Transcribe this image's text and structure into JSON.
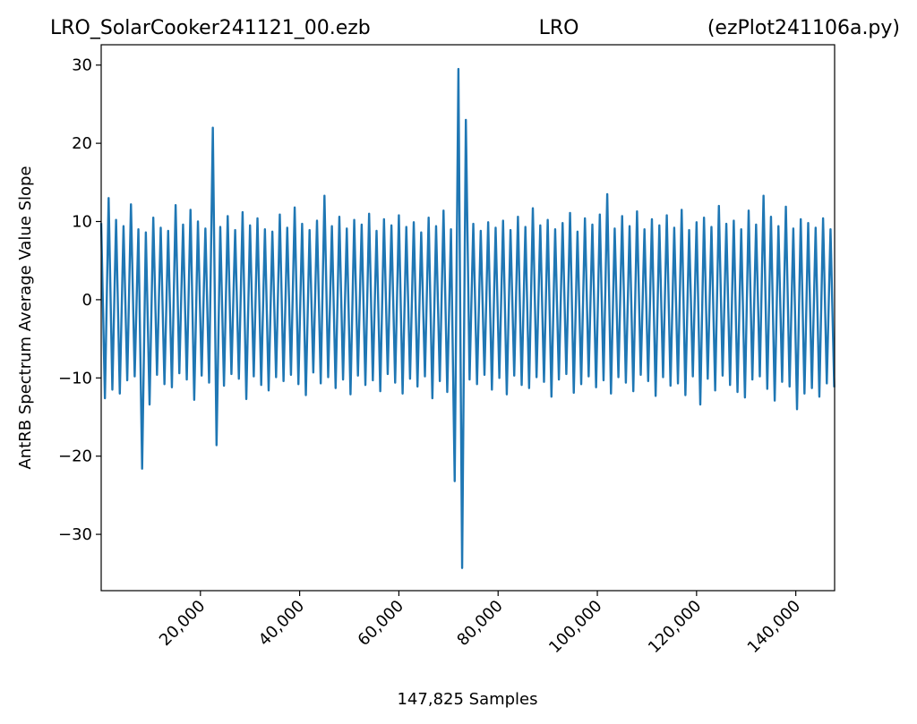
{
  "chart_data": {
    "type": "line",
    "title_left": "LRO_SolarCooker241121_00.ezb",
    "title": "LRO",
    "title_right": "(ezPlot241106a.py)",
    "xlabel": "147,825 Samples",
    "ylabel": "AntRB Spectrum Average Value Slope",
    "xlim": [
      0,
      147825
    ],
    "ylim": [
      -37.2,
      32.6
    ],
    "xticks": [
      {
        "value": 20000,
        "label": "20,000"
      },
      {
        "value": 40000,
        "label": "40,000"
      },
      {
        "value": 60000,
        "label": "60,000"
      },
      {
        "value": 80000,
        "label": "80,000"
      },
      {
        "value": 100000,
        "label": "100,000"
      },
      {
        "value": 120000,
        "label": "120,000"
      },
      {
        "value": 140000,
        "label": "140,000"
      }
    ],
    "yticks": [
      {
        "value": -30,
        "label": "−30"
      },
      {
        "value": -20,
        "label": "−20"
      },
      {
        "value": -10,
        "label": "−10"
      },
      0,
      10,
      20,
      30
    ],
    "grid": false,
    "x": [
      0,
      750,
      1500,
      2250,
      3000,
      3750,
      4500,
      5250,
      6000,
      6750,
      7500,
      8250,
      9000,
      9750,
      10500,
      11250,
      12000,
      12750,
      13500,
      14250,
      15000,
      15750,
      16500,
      17250,
      18000,
      18750,
      19500,
      20250,
      21000,
      21750,
      22500,
      23250,
      24000,
      24750,
      25500,
      26250,
      27000,
      27750,
      28500,
      29250,
      30000,
      30750,
      31500,
      32250,
      33000,
      33750,
      34500,
      35250,
      36000,
      36750,
      37500,
      38250,
      39000,
      39750,
      40500,
      41250,
      42000,
      42750,
      43500,
      44250,
      45000,
      45750,
      46500,
      47250,
      48000,
      48750,
      49500,
      50250,
      51000,
      51750,
      52500,
      53250,
      54000,
      54750,
      55500,
      56250,
      57000,
      57750,
      58500,
      59250,
      60000,
      60750,
      61500,
      62250,
      63000,
      63750,
      64500,
      65250,
      66000,
      66750,
      67500,
      68250,
      69000,
      69750,
      70500,
      71250,
      72000,
      72750,
      73500,
      74250,
      75000,
      75750,
      76500,
      77250,
      78000,
      78750,
      79500,
      80250,
      81000,
      81750,
      82500,
      83250,
      84000,
      84750,
      85500,
      86250,
      87000,
      87750,
      88500,
      89250,
      90000,
      90750,
      91500,
      92250,
      93000,
      93750,
      94500,
      95250,
      96000,
      96750,
      97500,
      98250,
      99000,
      99750,
      100500,
      101250,
      102000,
      102750,
      103500,
      104250,
      105000,
      105750,
      106500,
      107250,
      108000,
      108750,
      109500,
      110250,
      111000,
      111750,
      112500,
      113250,
      114000,
      114750,
      115500,
      116250,
      117000,
      117750,
      118500,
      119250,
      120000,
      120750,
      121500,
      122250,
      123000,
      123750,
      124500,
      125250,
      126000,
      126750,
      127500,
      128250,
      129000,
      129750,
      130500,
      131250,
      132000,
      132750,
      133500,
      134250,
      135000,
      135750,
      136500,
      137250,
      138000,
      138750,
      139500,
      140250,
      141000,
      141750,
      142500,
      143250,
      144000,
      144750,
      145500,
      146250,
      147000,
      147750
    ],
    "series": [
      {
        "color": "#1f77b4",
        "values": [
          9.8,
          -12.6,
          13,
          -11.5,
          10.2,
          -12,
          9.4,
          -10.3,
          12.2,
          -9.8,
          9,
          -21.6,
          8.6,
          -13.4,
          10.5,
          -9.6,
          9.2,
          -10.8,
          8.8,
          -11.2,
          12.1,
          -9.4,
          9.6,
          -10.2,
          11.5,
          -12.8,
          10,
          -9.7,
          9.1,
          -10.6,
          22,
          -18.6,
          9.3,
          -11,
          10.7,
          -9.5,
          8.9,
          -10.1,
          11.2,
          -12.7,
          9.5,
          -9.8,
          10.4,
          -10.9,
          9,
          -11.6,
          8.7,
          -9.9,
          10.9,
          -10.4,
          9.2,
          -9.6,
          11.8,
          -10.8,
          9.7,
          -12.2,
          8.9,
          -9.3,
          10.1,
          -10.7,
          13.3,
          -9.9,
          9.4,
          -11.3,
          10.6,
          -10.2,
          9.1,
          -12.1,
          10.2,
          -9.7,
          9.6,
          -10.9,
          11,
          -10.3,
          8.8,
          -11.7,
          10.3,
          -9.5,
          9.5,
          -10.6,
          10.8,
          -12,
          9.3,
          -10.1,
          9.9,
          -11.1,
          8.6,
          -9.8,
          10.5,
          -12.6,
          9.4,
          -10.4,
          11.4,
          -11.8,
          9,
          -23.2,
          29.5,
          -34.3,
          23,
          -10.2,
          9.7,
          -10.8,
          8.8,
          -9.6,
          9.9,
          -11.5,
          9.2,
          -10,
          10.1,
          -12.1,
          8.9,
          -9.7,
          10.6,
          -10.9,
          9.3,
          -11.3,
          11.7,
          -9.9,
          9.5,
          -10.5,
          10.2,
          -12.4,
          9,
          -10.2,
          9.8,
          -9.5,
          11.1,
          -11.9,
          8.7,
          -10.8,
          10.4,
          -9.8,
          9.6,
          -11.2,
          10.9,
          -10.3,
          13.5,
          -12,
          9.1,
          -9.9,
          10.7,
          -10.6,
          9.4,
          -11.7,
          11.3,
          -9.6,
          9,
          -10.4,
          10.3,
          -12.3,
          9.5,
          -9.9,
          10.8,
          -11,
          9.2,
          -10.7,
          11.5,
          -12.2,
          8.9,
          -9.8,
          9.9,
          -13.4,
          10.5,
          -10.1,
          9.3,
          -11.6,
          12,
          -9.7,
          9.7,
          -10.9,
          10.1,
          -11.8,
          9,
          -12.5,
          11.4,
          -10.2,
          9.6,
          -9.8,
          13.3,
          -11.4,
          10.6,
          -12.9,
          9.4,
          -10.5,
          11.9,
          -11.1,
          9.1,
          -14,
          10.3,
          -12,
          9.8,
          -11.3,
          9.2,
          -12.4,
          10.4,
          -10.7,
          9,
          -11.2
        ]
      }
    ]
  }
}
